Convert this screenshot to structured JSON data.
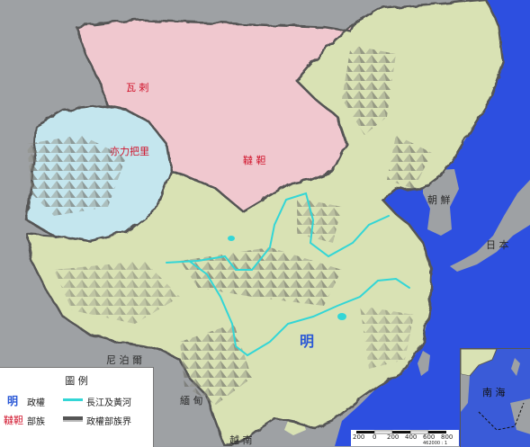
{
  "labels": {
    "wala": "瓦 剌",
    "tatar": "韃 靼",
    "chilibali": "亦力把里",
    "ming": "明",
    "korea": "朝 鮮",
    "japan": "日 本",
    "nepal": "尼 泊 爾",
    "burma": "緬 甸",
    "vietnam": "越 南",
    "south_sea": "南 海"
  },
  "legend": {
    "title": "圖 例",
    "regime_symbol": "明",
    "regime_label": "政權",
    "tribe_symbol": "韃靼",
    "tribe_label": "部族",
    "river_label": "長江及黃河",
    "border_label": "政權部族界"
  },
  "scale": {
    "ticks": [
      "200",
      "0",
      "200",
      "400",
      "600",
      "800"
    ],
    "ratio": "462000 : 1"
  },
  "colors": {
    "sea": "#2d4fe0",
    "land_outside": "#9ea1a4",
    "ming": "#d9e2b4",
    "tatar": "#f0c8cf",
    "chilibali": "#c4e6ee",
    "river": "#33d6d6",
    "border": "#555555"
  }
}
